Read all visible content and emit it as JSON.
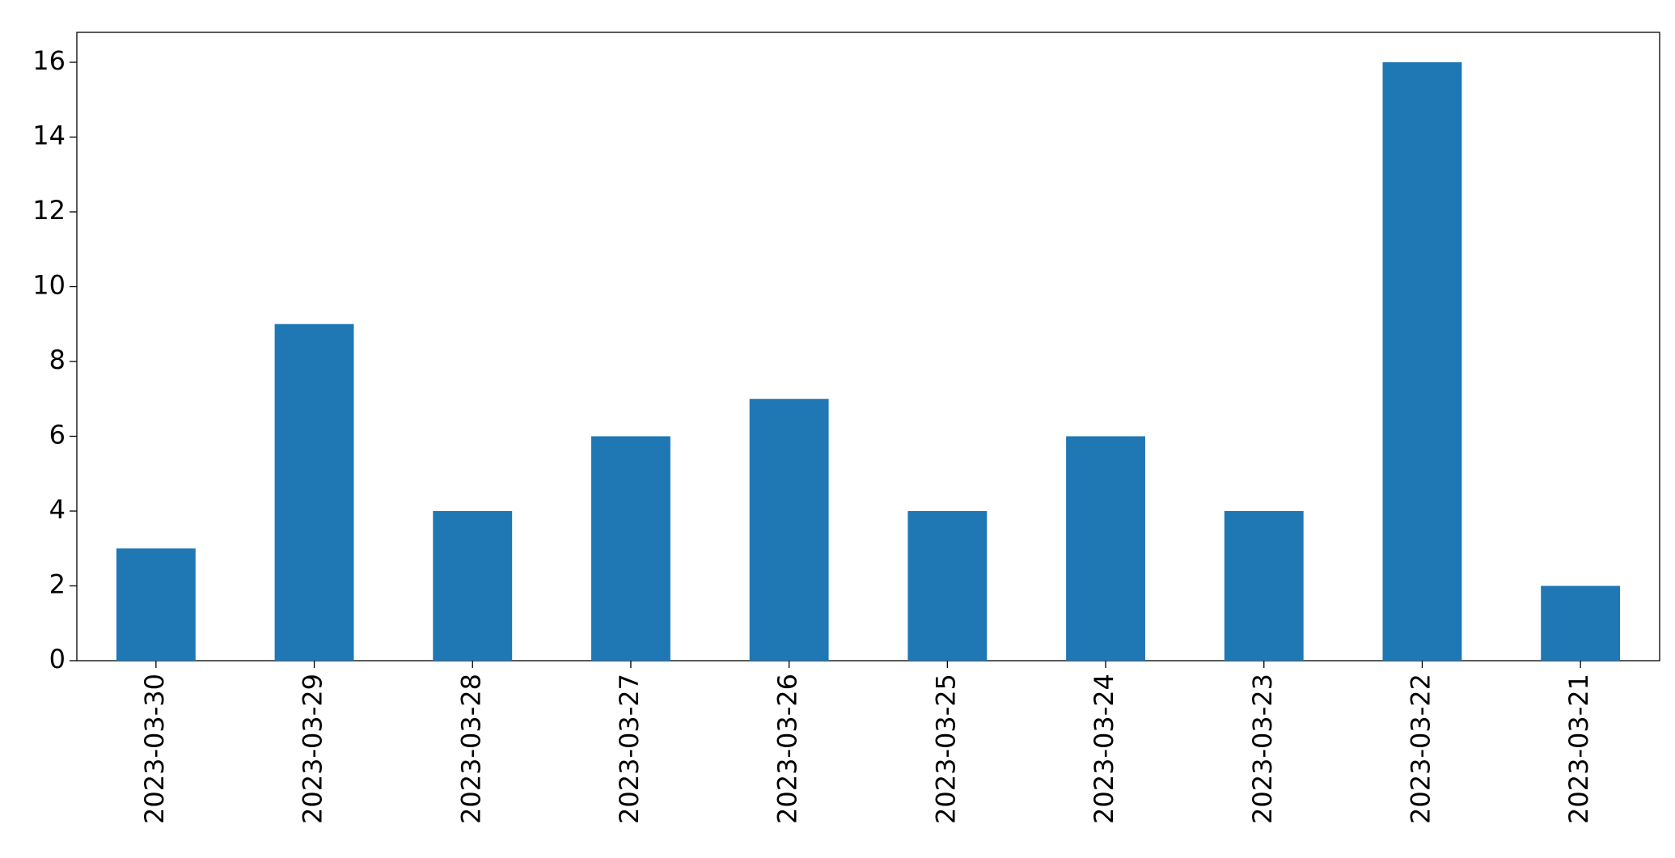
{
  "chart_data": {
    "type": "bar",
    "categories": [
      "2023-03-30",
      "2023-03-29",
      "2023-03-28",
      "2023-03-27",
      "2023-03-26",
      "2023-03-25",
      "2023-03-24",
      "2023-03-23",
      "2023-03-22",
      "2023-03-21"
    ],
    "values": [
      3,
      9,
      4,
      6,
      7,
      4,
      6,
      4,
      16,
      2
    ],
    "color": "#1f77b4",
    "ylim": [
      0,
      16.8
    ],
    "yticks": [
      0,
      2,
      4,
      6,
      8,
      10,
      12,
      14,
      16
    ],
    "grid": false
  }
}
